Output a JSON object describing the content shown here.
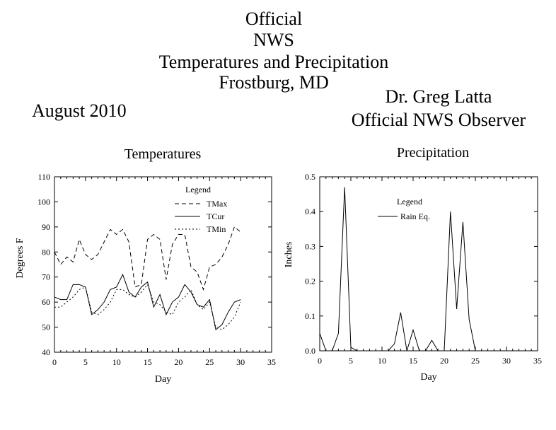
{
  "header": {
    "title_lines": [
      "Official",
      "NWS",
      "Temperatures and Precipitation",
      "Frostburg, MD"
    ],
    "month": "August 2010",
    "observer_name": "Dr. Greg Latta",
    "observer_title": "Official NWS Observer"
  },
  "chart_data": [
    {
      "type": "line",
      "title": "Temperatures",
      "xlabel": "Day",
      "ylabel": "Degrees F",
      "xlim": [
        0,
        35
      ],
      "ylim": [
        40,
        110
      ],
      "xticks": [
        0,
        5,
        10,
        15,
        20,
        25,
        30,
        35
      ],
      "yticks": [
        40,
        50,
        60,
        70,
        80,
        90,
        100,
        110
      ],
      "legend_title": "Legend",
      "legend_position": "top-right",
      "grid": false,
      "x": [
        0,
        1,
        2,
        3,
        4,
        5,
        6,
        7,
        8,
        9,
        10,
        11,
        12,
        13,
        14,
        15,
        16,
        17,
        18,
        19,
        20,
        21,
        22,
        23,
        24,
        25,
        26,
        27,
        28,
        29,
        30
      ],
      "series": [
        {
          "name": "TMax",
          "dash": "dashed",
          "values": [
            80,
            75,
            78,
            76,
            85,
            79,
            77,
            79,
            84,
            89,
            87,
            89,
            84,
            66,
            67,
            85,
            87,
            85,
            69,
            83,
            87,
            87,
            74,
            72,
            65,
            74,
            75,
            78,
            83,
            90,
            88
          ]
        },
        {
          "name": "TCur",
          "dash": "solid",
          "values": [
            62,
            61,
            61,
            67,
            67,
            66,
            55,
            57,
            60,
            65,
            66,
            71,
            64,
            62,
            66,
            68,
            58,
            63,
            55,
            60,
            62,
            67,
            64,
            59,
            58,
            61,
            49,
            51,
            56,
            60,
            61
          ]
        },
        {
          "name": "TMin",
          "dash": "dotted",
          "values": [
            58,
            58,
            60,
            62,
            65,
            66,
            56,
            55,
            57,
            60,
            65,
            65,
            63,
            62,
            64,
            67,
            60,
            59,
            56,
            55,
            60,
            62,
            65,
            59,
            57,
            60,
            50,
            49,
            51,
            54,
            60
          ]
        }
      ]
    },
    {
      "type": "line",
      "title": "Precipitation",
      "xlabel": "Day",
      "ylabel": "Inches",
      "xlim": [
        0,
        35
      ],
      "ylim": [
        0,
        0.5
      ],
      "xticks": [
        0,
        5,
        10,
        15,
        20,
        25,
        30,
        35
      ],
      "yticks": [
        0.0,
        0.1,
        0.2,
        0.3,
        0.4,
        0.5
      ],
      "legend_title": "Legend",
      "legend_position": "top-right",
      "grid": false,
      "x": [
        0,
        1,
        2,
        3,
        4,
        5,
        6,
        7,
        8,
        9,
        10,
        11,
        12,
        13,
        14,
        15,
        16,
        17,
        18,
        19,
        20,
        21,
        22,
        23,
        24,
        25,
        26,
        27,
        28,
        29,
        30
      ],
      "series": [
        {
          "name": "Rain Eq.",
          "dash": "solid",
          "values": [
            0.05,
            0.0,
            0.0,
            0.05,
            0.47,
            0.01,
            0.0,
            0.0,
            0.0,
            0.0,
            0.0,
            0.0,
            0.02,
            0.11,
            0.0,
            0.06,
            0.0,
            0.0,
            0.03,
            0.0,
            0.0,
            0.4,
            0.12,
            0.37,
            0.09,
            0.0,
            0.0,
            0.0,
            0.0,
            0.0,
            0.0
          ]
        }
      ]
    }
  ]
}
